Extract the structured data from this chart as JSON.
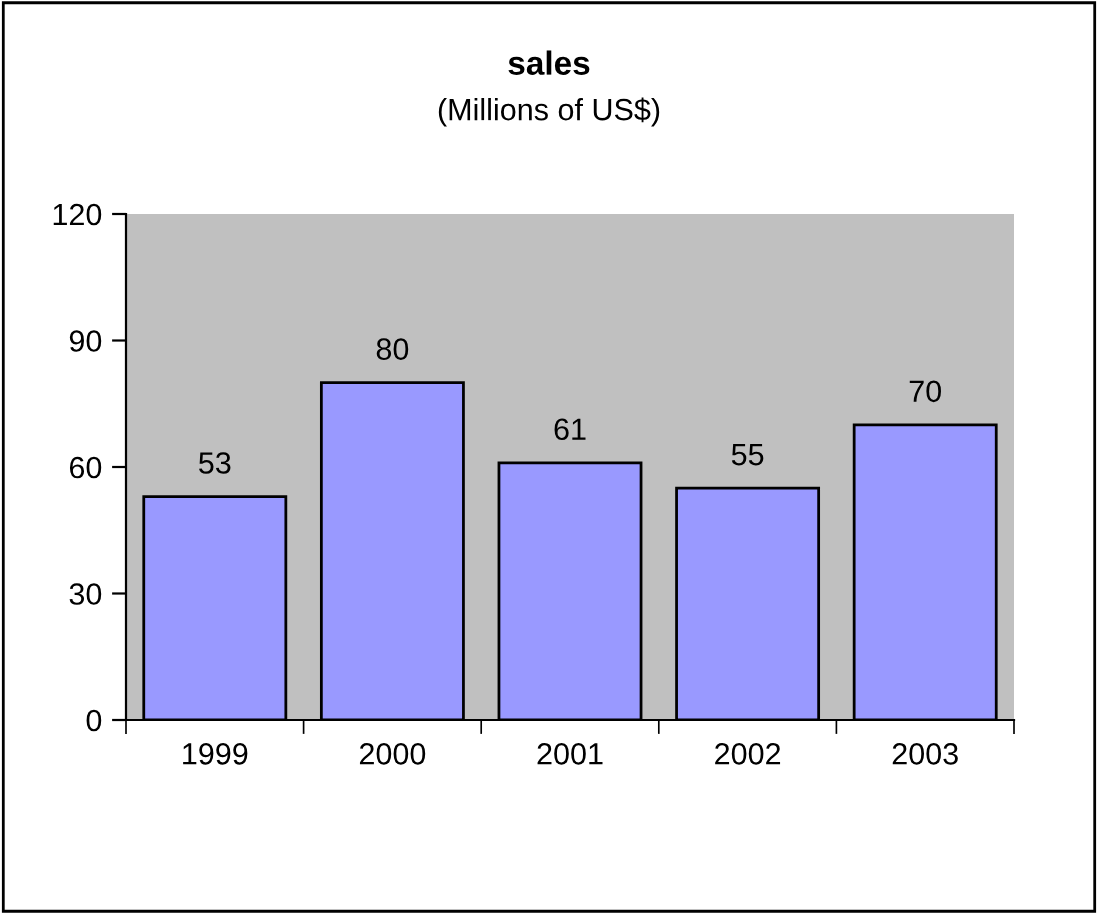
{
  "chart_data": {
    "type": "bar",
    "title": "sales",
    "subtitle": "(Millions of US$)",
    "categories": [
      "1999",
      "2000",
      "2001",
      "2002",
      "2003"
    ],
    "values": [
      53,
      80,
      61,
      55,
      70
    ],
    "color": "#9999ff",
    "ylim": [
      0,
      120
    ],
    "yticks": [
      0,
      30,
      60,
      90,
      120
    ],
    "data_labels": true,
    "grid": false,
    "legend": false
  }
}
